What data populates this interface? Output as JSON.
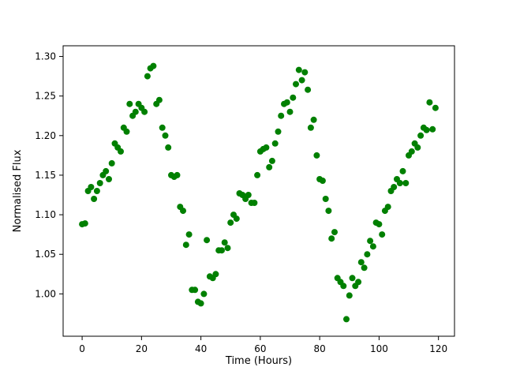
{
  "chart_data": {
    "type": "scatter",
    "title": "",
    "xlabel": "Time (Hours)",
    "ylabel": "Normalised Flux",
    "color": "#008000",
    "grid": false,
    "legend": "none",
    "xlim": [
      -6.4,
      125.4
    ],
    "ylim": [
      0.9465,
      1.3135
    ],
    "xticks": [
      0,
      20,
      40,
      60,
      80,
      100,
      120
    ],
    "yticks": [
      1.0,
      1.05,
      1.1,
      1.15,
      1.2,
      1.25,
      1.3
    ],
    "x": [
      0,
      1,
      2,
      3,
      4,
      5,
      6,
      7,
      8,
      9,
      10,
      11,
      12,
      13,
      14,
      15,
      16,
      17,
      18,
      19,
      20,
      21,
      22,
      23,
      24,
      25,
      26,
      27,
      28,
      29,
      30,
      31,
      32,
      33,
      34,
      35,
      36,
      37,
      38,
      39,
      40,
      41,
      42,
      43,
      44,
      45,
      46,
      47,
      48,
      49,
      50,
      51,
      52,
      53,
      54,
      55,
      56,
      57,
      58,
      59,
      60,
      61,
      62,
      63,
      64,
      65,
      66,
      67,
      68,
      69,
      70,
      71,
      72,
      73,
      74,
      75,
      76,
      77,
      78,
      79,
      80,
      81,
      82,
      83,
      84,
      85,
      86,
      87,
      88,
      89,
      90,
      91,
      92,
      93,
      94,
      95,
      96,
      97,
      98,
      99,
      100,
      101,
      102,
      103,
      104,
      105,
      106,
      107,
      108,
      109,
      110,
      111,
      112,
      113,
      114,
      115,
      116,
      117,
      118,
      119
    ],
    "y": [
      1.088,
      1.089,
      1.13,
      1.135,
      1.12,
      1.13,
      1.14,
      1.15,
      1.155,
      1.145,
      1.165,
      1.19,
      1.185,
      1.18,
      1.21,
      1.205,
      1.24,
      1.225,
      1.23,
      1.24,
      1.235,
      1.23,
      1.275,
      1.285,
      1.288,
      1.24,
      1.245,
      1.21,
      1.2,
      1.185,
      1.15,
      1.148,
      1.15,
      1.11,
      1.105,
      1.062,
      1.075,
      1.005,
      1.005,
      0.99,
      0.988,
      1.0,
      1.068,
      1.022,
      1.02,
      1.025,
      1.055,
      1.055,
      1.065,
      1.058,
      1.09,
      1.1,
      1.095,
      1.127,
      1.125,
      1.12,
      1.125,
      1.115,
      1.115,
      1.15,
      1.18,
      1.183,
      1.185,
      1.16,
      1.168,
      1.19,
      1.205,
      1.225,
      1.24,
      1.242,
      1.23,
      1.248,
      1.265,
      1.283,
      1.27,
      1.28,
      1.258,
      1.21,
      1.22,
      1.175,
      1.145,
      1.143,
      1.12,
      1.105,
      1.07,
      1.078,
      1.02,
      1.015,
      1.01,
      0.968,
      0.998,
      1.02,
      1.01,
      1.015,
      1.04,
      1.033,
      1.05,
      1.067,
      1.06,
      1.09,
      1.088,
      1.075,
      1.105,
      1.11,
      1.13,
      1.135,
      1.145,
      1.14,
      1.155,
      1.14,
      1.175,
      1.18,
      1.19,
      1.185,
      1.2,
      1.21,
      1.207,
      1.242,
      1.208,
      1.235
    ]
  }
}
